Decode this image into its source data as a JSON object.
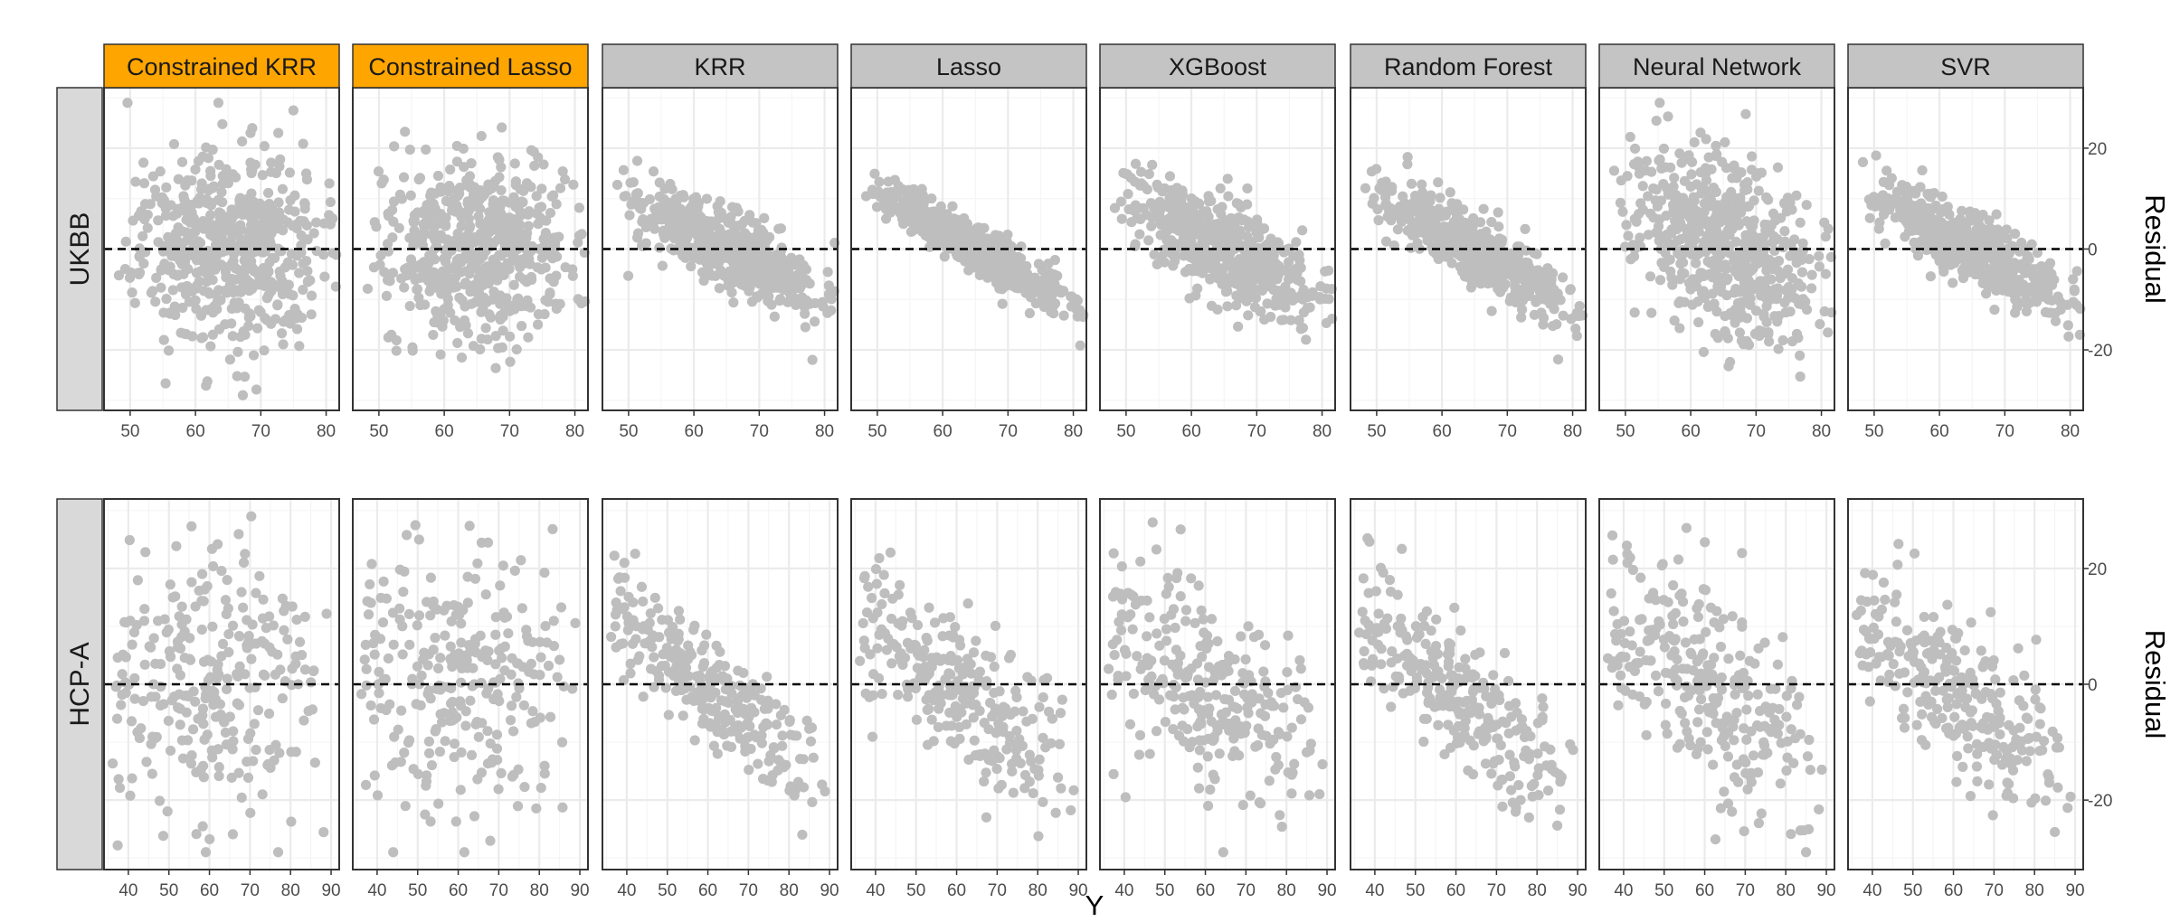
{
  "chart_data": {
    "type": "scatter",
    "facet_grid": true,
    "columns": [
      {
        "name": "Constrained KRR",
        "highlight": true
      },
      {
        "name": "Constrained Lasso",
        "highlight": true
      },
      {
        "name": "KRR",
        "highlight": false
      },
      {
        "name": "Lasso",
        "highlight": false
      },
      {
        "name": "XGBoost",
        "highlight": false
      },
      {
        "name": "Random Forest",
        "highlight": false
      },
      {
        "name": "Neural Network",
        "highlight": false
      },
      {
        "name": "SVR",
        "highlight": false
      }
    ],
    "rows": [
      {
        "name": "UKBB",
        "xlim": [
          46,
          82
        ],
        "xticks": [
          50,
          60,
          70,
          80
        ],
        "n_points": 560,
        "y_mean": 65,
        "y_sd": 8,
        "y_range": [
          48,
          82
        ],
        "residual_slope_by_model": [
          0.0,
          0.0,
          -0.62,
          -0.72,
          -0.66,
          -0.72,
          -0.5,
          -0.68
        ],
        "residual_noise_sd_by_model": [
          9.5,
          9.5,
          3.6,
          2.3,
          4.6,
          3.1,
          9.0,
          3.3
        ]
      },
      {
        "name": "HCP-A",
        "xlim": [
          34,
          92
        ],
        "xticks": [
          40,
          50,
          60,
          70,
          80,
          90
        ],
        "n_points": 270,
        "y_mean": 58,
        "y_sd": 14,
        "y_range": [
          36,
          90
        ],
        "residual_slope_by_model": [
          0.0,
          0.0,
          -0.6,
          -0.52,
          -0.5,
          -0.58,
          -0.46,
          -0.55
        ],
        "residual_noise_sd_by_model": [
          12,
          11,
          4.8,
          6.4,
          8.4,
          5.6,
          9.2,
          6.5
        ]
      }
    ],
    "ylim": [
      -32,
      32
    ],
    "yticks": [
      -20,
      0,
      20
    ],
    "reference_line_y": 0,
    "xlabel": "Y",
    "ylabel": "Residual",
    "colors": {
      "points": "#bebebe",
      "highlight_strip": "#ffa500",
      "default_strip": "#c4c4c4",
      "row_strip": "#d9d9d9",
      "panel_border": "#333333",
      "grid_major": "#ebebeb",
      "grid_minor": "#f5f5f5",
      "reference_line": "#000000"
    },
    "grid": true,
    "legend": "none"
  }
}
